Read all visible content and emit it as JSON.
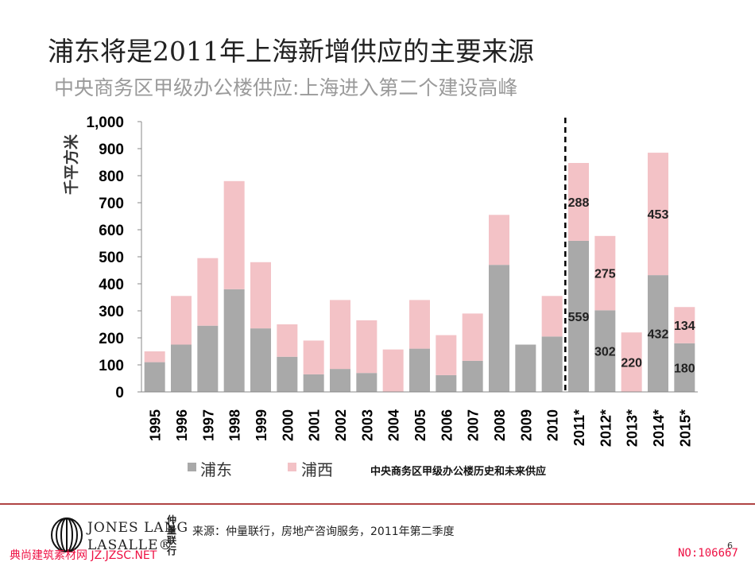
{
  "title": "浦东将是2011年上海新增供应的主要来源",
  "subtitle": "中央商务区甲级办公楼供应:上海进入第二个建设高峰",
  "chart_data": {
    "type": "bar",
    "stacked": true,
    "ylabel": "千平方米",
    "ylim": [
      0,
      1000
    ],
    "yticks": [
      "0",
      "100",
      "200",
      "300",
      "400",
      "500",
      "600",
      "700",
      "800",
      "900",
      "1,000"
    ],
    "categories": [
      "1995",
      "1996",
      "1997",
      "1998",
      "1999",
      "2000",
      "2001",
      "2002",
      "2003",
      "2004",
      "2005",
      "2006",
      "2007",
      "2008",
      "2009",
      "2010",
      "2011*",
      "2012*",
      "2013*",
      "2014*",
      "2015*"
    ],
    "series": [
      {
        "name": "浦东",
        "color": "#a9a9a9",
        "values": [
          110,
          175,
          245,
          380,
          235,
          130,
          65,
          85,
          70,
          0,
          160,
          62,
          115,
          470,
          175,
          205,
          559,
          302,
          0,
          432,
          180
        ]
      },
      {
        "name": "浦西",
        "color": "#f3c2c6",
        "values": [
          40,
          180,
          250,
          400,
          245,
          120,
          125,
          255,
          195,
          157,
          180,
          148,
          175,
          185,
          0,
          150,
          288,
          275,
          220,
          453,
          134
        ]
      }
    ],
    "data_labels": [
      {
        "category": "2011*",
        "series": "浦东",
        "text": "559"
      },
      {
        "category": "2011*",
        "series": "浦西",
        "text": "288"
      },
      {
        "category": "2012*",
        "series": "浦东",
        "text": "302"
      },
      {
        "category": "2012*",
        "series": "浦西",
        "text": "275"
      },
      {
        "category": "2013*",
        "series": "浦西",
        "text": "220"
      },
      {
        "category": "2014*",
        "series": "浦东",
        "text": "432"
      },
      {
        "category": "2014*",
        "series": "浦西",
        "text": "453"
      },
      {
        "category": "2015*",
        "series": "浦东",
        "text": "180"
      },
      {
        "category": "2015*",
        "series": "浦西",
        "text": "134"
      }
    ],
    "divider_before": "2011*",
    "legend": {
      "placement": "bottom-left",
      "items": [
        "浦东",
        "浦西"
      ]
    },
    "note": "中央商务区甲级办公楼历史和未来供应"
  },
  "footer": {
    "source": "来源：仲量联行，房地产咨询服务，2011年第二季度",
    "logo_line1": "JONES LANG",
    "logo_line2": "LASALLE®",
    "logo_cn": "仲量联行",
    "page": "6",
    "watermark_left": "典尚建筑素材网 JZ.JZSC.NET",
    "watermark_right": "NO:106667"
  }
}
